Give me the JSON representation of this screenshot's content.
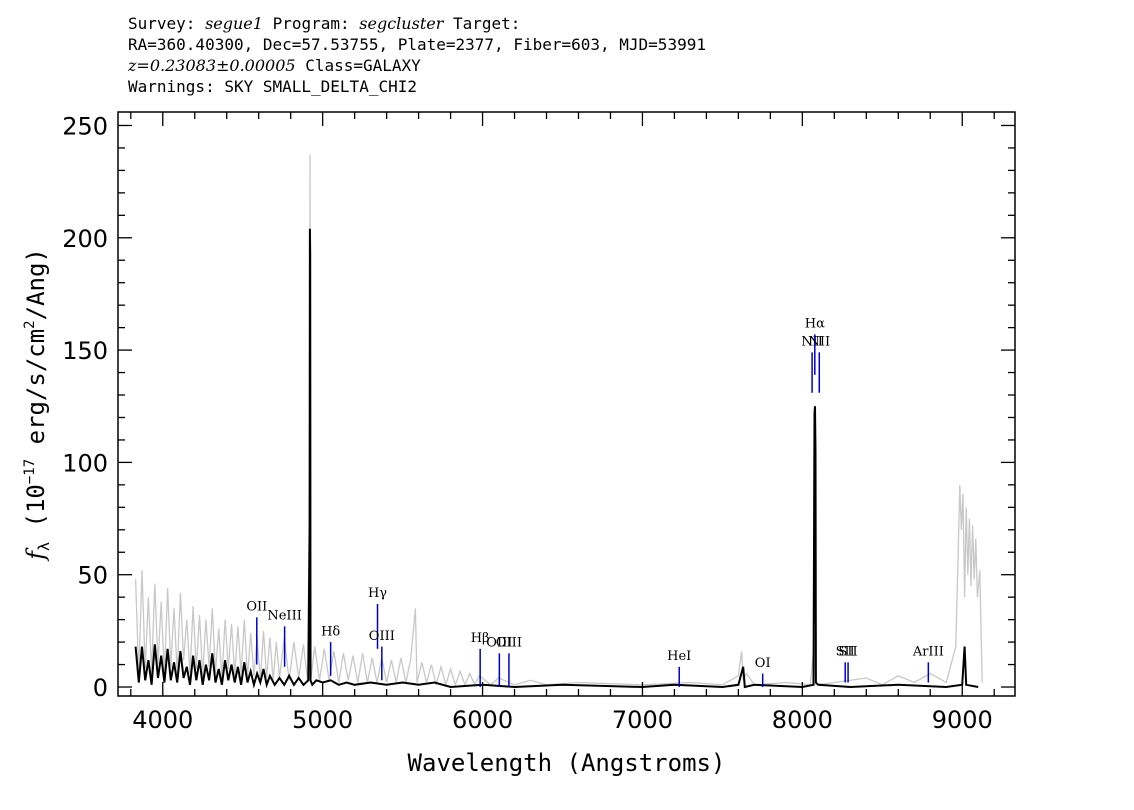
{
  "header": {
    "survey_label": "Survey:",
    "survey": "segue1",
    "program_label": "Program:",
    "program": "segcluster",
    "target_label": "Target:",
    "line2": "RA=360.40300, Dec=57.53755, Plate=2377, Fiber=603, MJD=53991",
    "redshift": "z=0.23083±0.00005",
    "class": "Class=GALAXY",
    "warnings": "Warnings: SKY SMALL_DELTA_CHI2"
  },
  "chart_data": {
    "type": "line",
    "xlabel": "Wavelength (Angstroms)",
    "ylabel_parts": [
      "f",
      "λ",
      " (10",
      "−17",
      " erg/s/cm",
      "2",
      "/Ang)"
    ],
    "xlim": [
      3720,
      9330
    ],
    "ylim": [
      -4,
      256
    ],
    "x_ticks": [
      4000,
      5000,
      6000,
      7000,
      8000,
      9000
    ],
    "y_ticks": [
      0,
      50,
      100,
      150,
      200,
      250
    ],
    "colors": {
      "flux": "#000000",
      "error": "#c8c8c8",
      "line_marker": "#0000cc",
      "axes": "#000000"
    },
    "series": [
      {
        "role": "flux",
        "points": [
          [
            3830,
            18
          ],
          [
            3850,
            2
          ],
          [
            3870,
            18
          ],
          [
            3890,
            3
          ],
          [
            3910,
            12
          ],
          [
            3930,
            1
          ],
          [
            3950,
            19
          ],
          [
            3970,
            4
          ],
          [
            3990,
            14
          ],
          [
            4010,
            2
          ],
          [
            4030,
            17
          ],
          [
            4050,
            3
          ],
          [
            4070,
            11
          ],
          [
            4090,
            2
          ],
          [
            4110,
            16
          ],
          [
            4130,
            4
          ],
          [
            4150,
            9
          ],
          [
            4170,
            1
          ],
          [
            4190,
            14
          ],
          [
            4210,
            3
          ],
          [
            4230,
            12
          ],
          [
            4250,
            1
          ],
          [
            4270,
            10
          ],
          [
            4290,
            3
          ],
          [
            4310,
            15
          ],
          [
            4330,
            2
          ],
          [
            4350,
            8
          ],
          [
            4370,
            1
          ],
          [
            4390,
            12
          ],
          [
            4410,
            3
          ],
          [
            4430,
            10
          ],
          [
            4450,
            2
          ],
          [
            4470,
            9
          ],
          [
            4490,
            1
          ],
          [
            4510,
            11
          ],
          [
            4530,
            2
          ],
          [
            4550,
            7
          ],
          [
            4570,
            1
          ],
          [
            4590,
            6
          ],
          [
            4610,
            2
          ],
          [
            4630,
            8
          ],
          [
            4650,
            1
          ],
          [
            4670,
            5
          ],
          [
            4700,
            1
          ],
          [
            4730,
            4
          ],
          [
            4760,
            1
          ],
          [
            4790,
            5
          ],
          [
            4820,
            1
          ],
          [
            4850,
            4
          ],
          [
            4880,
            1
          ],
          [
            4910,
            3
          ],
          [
            4918,
            71
          ],
          [
            4920,
            204
          ],
          [
            4922,
            193
          ],
          [
            4924,
            3
          ],
          [
            4935,
            1
          ],
          [
            4960,
            3
          ],
          [
            5000,
            2
          ],
          [
            5050,
            3
          ],
          [
            5100,
            1
          ],
          [
            5150,
            2
          ],
          [
            5200,
            1
          ],
          [
            5300,
            2
          ],
          [
            5400,
            1
          ],
          [
            5500,
            2
          ],
          [
            5600,
            1
          ],
          [
            5700,
            2
          ],
          [
            5800,
            0
          ],
          [
            6000,
            1
          ],
          [
            6200,
            0
          ],
          [
            6500,
            1
          ],
          [
            7000,
            0
          ],
          [
            7200,
            1
          ],
          [
            7500,
            0
          ],
          [
            7600,
            1
          ],
          [
            7630,
            9
          ],
          [
            7640,
            0
          ],
          [
            7700,
            1
          ],
          [
            8000,
            0
          ],
          [
            8070,
            1
          ],
          [
            8076,
            122
          ],
          [
            8079,
            125
          ],
          [
            8082,
            105
          ],
          [
            8085,
            2
          ],
          [
            8100,
            1
          ],
          [
            8300,
            0
          ],
          [
            8600,
            1
          ],
          [
            8900,
            0
          ],
          [
            9000,
            1
          ],
          [
            9015,
            18
          ],
          [
            9025,
            1
          ],
          [
            9100,
            0
          ]
        ]
      },
      {
        "role": "error",
        "points": [
          [
            3830,
            48
          ],
          [
            3850,
            5
          ],
          [
            3870,
            52
          ],
          [
            3890,
            8
          ],
          [
            3910,
            40
          ],
          [
            3930,
            6
          ],
          [
            3950,
            46
          ],
          [
            3970,
            10
          ],
          [
            3990,
            38
          ],
          [
            4010,
            5
          ],
          [
            4030,
            44
          ],
          [
            4050,
            9
          ],
          [
            4070,
            35
          ],
          [
            4090,
            6
          ],
          [
            4110,
            42
          ],
          [
            4130,
            12
          ],
          [
            4150,
            30
          ],
          [
            4170,
            6
          ],
          [
            4190,
            36
          ],
          [
            4210,
            8
          ],
          [
            4230,
            32
          ],
          [
            4250,
            5
          ],
          [
            4270,
            30
          ],
          [
            4290,
            9
          ],
          [
            4310,
            35
          ],
          [
            4330,
            6
          ],
          [
            4350,
            26
          ],
          [
            4370,
            4
          ],
          [
            4390,
            30
          ],
          [
            4410,
            8
          ],
          [
            4430,
            28
          ],
          [
            4450,
            5
          ],
          [
            4470,
            27
          ],
          [
            4490,
            6
          ],
          [
            4510,
            30
          ],
          [
            4530,
            4
          ],
          [
            4550,
            24
          ],
          [
            4570,
            5
          ],
          [
            4590,
            22
          ],
          [
            4610,
            3
          ],
          [
            4630,
            25
          ],
          [
            4650,
            4
          ],
          [
            4670,
            22
          ],
          [
            4690,
            3
          ],
          [
            4710,
            20
          ],
          [
            4730,
            4
          ],
          [
            4760,
            22
          ],
          [
            4790,
            3
          ],
          [
            4820,
            20
          ],
          [
            4850,
            4
          ],
          [
            4880,
            19
          ],
          [
            4905,
            3
          ],
          [
            4918,
            90
          ],
          [
            4921,
            237
          ],
          [
            4924,
            120
          ],
          [
            4927,
            4
          ],
          [
            4950,
            18
          ],
          [
            4980,
            3
          ],
          [
            5010,
            17
          ],
          [
            5040,
            3
          ],
          [
            5070,
            16
          ],
          [
            5100,
            2
          ],
          [
            5130,
            15
          ],
          [
            5160,
            3
          ],
          [
            5190,
            14
          ],
          [
            5220,
            2
          ],
          [
            5250,
            15
          ],
          [
            5280,
            2
          ],
          [
            5310,
            13
          ],
          [
            5340,
            2
          ],
          [
            5370,
            13
          ],
          [
            5400,
            2
          ],
          [
            5430,
            12
          ],
          [
            5460,
            2
          ],
          [
            5490,
            13
          ],
          [
            5520,
            2
          ],
          [
            5550,
            12
          ],
          [
            5580,
            35
          ],
          [
            5590,
            2
          ],
          [
            5620,
            11
          ],
          [
            5650,
            2
          ],
          [
            5680,
            10
          ],
          [
            5710,
            1
          ],
          [
            5740,
            9
          ],
          [
            5770,
            1
          ],
          [
            5800,
            8
          ],
          [
            5830,
            1
          ],
          [
            5860,
            7
          ],
          [
            5890,
            1
          ],
          [
            5920,
            6
          ],
          [
            5950,
            1
          ],
          [
            5980,
            5
          ],
          [
            6050,
            1
          ],
          [
            6100,
            4
          ],
          [
            6200,
            1
          ],
          [
            6300,
            3
          ],
          [
            6400,
            1
          ],
          [
            6600,
            2
          ],
          [
            7000,
            1
          ],
          [
            7300,
            2
          ],
          [
            7500,
            1
          ],
          [
            7600,
            5
          ],
          [
            7620,
            16
          ],
          [
            7630,
            3
          ],
          [
            7650,
            6
          ],
          [
            7700,
            1
          ],
          [
            7900,
            2
          ],
          [
            8050,
            1
          ],
          [
            8075,
            20
          ],
          [
            8085,
            1
          ],
          [
            8200,
            2
          ],
          [
            8400,
            4
          ],
          [
            8500,
            1
          ],
          [
            8600,
            5
          ],
          [
            8700,
            2
          ],
          [
            8800,
            6
          ],
          [
            8900,
            2
          ],
          [
            8960,
            18
          ],
          [
            8975,
            60
          ],
          [
            8985,
            90
          ],
          [
            8995,
            70
          ],
          [
            9005,
            86
          ],
          [
            9015,
            40
          ],
          [
            9025,
            80
          ],
          [
            9035,
            50
          ],
          [
            9045,
            75
          ],
          [
            9055,
            45
          ],
          [
            9065,
            72
          ],
          [
            9075,
            48
          ],
          [
            9085,
            66
          ],
          [
            9095,
            40
          ],
          [
            9110,
            52
          ],
          [
            9125,
            2
          ]
        ]
      }
    ],
    "lines": [
      {
        "name": "OII",
        "x": 4588,
        "y1": 10,
        "y2": 31,
        "label_y": 34
      },
      {
        "name": "NeIII",
        "x": 4762,
        "y1": 9,
        "y2": 27,
        "label_y": 30
      },
      {
        "name": "Hδ",
        "x": 5050,
        "y1": 5,
        "y2": 20,
        "label_y": 23
      },
      {
        "name": "Hγ",
        "x": 5343,
        "y1": 17,
        "y2": 37,
        "label_y": 40
      },
      {
        "name": "OIII",
        "x": 5370,
        "y1": 3,
        "y2": 18,
        "label_y": 21
      },
      {
        "name": "Hβ",
        "x": 5985,
        "y1": 0,
        "y2": 17,
        "label_y": 20
      },
      {
        "name": "OIII",
        "x": 6105,
        "y1": 0,
        "y2": 15,
        "label_y": 18
      },
      {
        "name": "OIII",
        "x": 6165,
        "y1": 0,
        "y2": 15,
        "label_y": 18
      },
      {
        "name": "HeI",
        "x": 7230,
        "y1": 0,
        "y2": 9,
        "label_y": 12
      },
      {
        "name": "OI",
        "x": 7752,
        "y1": 0,
        "y2": 6,
        "label_y": 9
      },
      {
        "name": "NII",
        "x": 8061,
        "y1": 131,
        "y2": 149,
        "label_y": 152
      },
      {
        "name": "Hα",
        "x": 8078,
        "y1": 139,
        "y2": 157,
        "label_y": 160
      },
      {
        "name": "NII",
        "x": 8106,
        "y1": 131,
        "y2": 149,
        "label_y": 152
      },
      {
        "name": "SII",
        "x": 8268,
        "y1": 2,
        "y2": 11,
        "label_y": 14
      },
      {
        "name": "SII",
        "x": 8286,
        "y1": 2,
        "y2": 11,
        "label_y": 14
      },
      {
        "name": "ArIII",
        "x": 8788,
        "y1": 2,
        "y2": 11,
        "label_y": 14
      }
    ]
  }
}
